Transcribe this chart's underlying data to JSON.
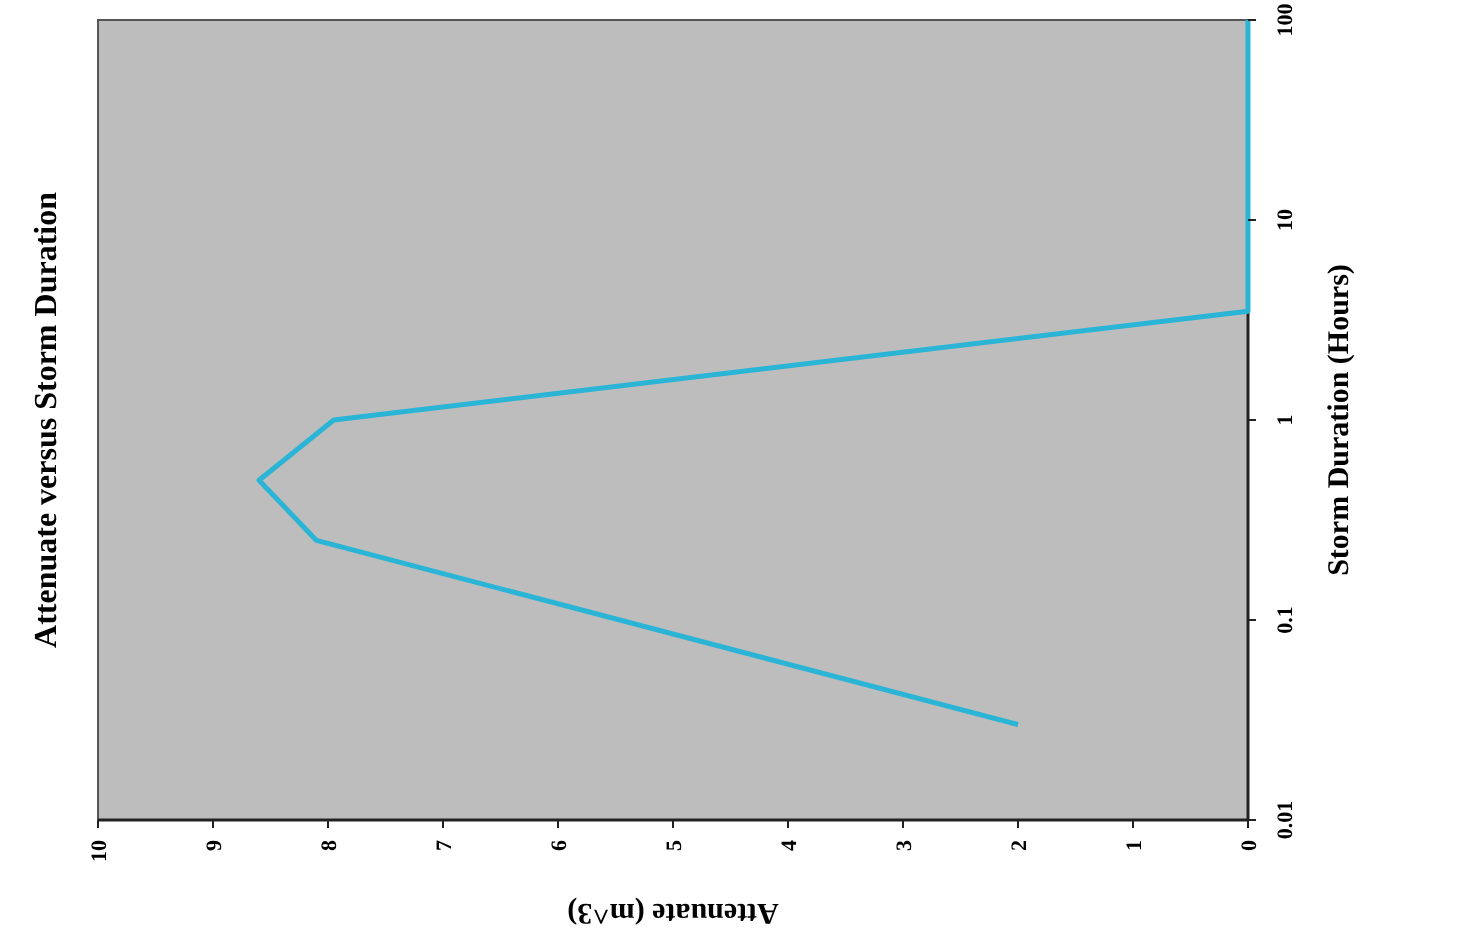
{
  "chart_data": {
    "type": "line",
    "title": "Attenuate versus Storm Duration",
    "xlabel": "Attenuate (m^3)",
    "ylabel": "Storm Duration (Hours)",
    "series": [
      {
        "color": "#2ab4d6",
        "x": [
          2,
          8.1,
          8.6,
          7.95,
          0,
          0
        ],
        "values": [
          0.03,
          0.25,
          0.5,
          1,
          3.5,
          100
        ]
      }
    ],
    "log": "y",
    "ylim": [
      0.01,
      100
    ],
    "yticks": [
      0.01,
      0.1,
      1,
      10,
      100
    ],
    "xlim": [
      10,
      0
    ],
    "xticks": [
      10,
      9,
      8,
      7,
      6,
      5,
      4,
      3,
      2,
      1,
      0
    ],
    "grid": false,
    "marker": "none",
    "line_style": "solid"
  }
}
